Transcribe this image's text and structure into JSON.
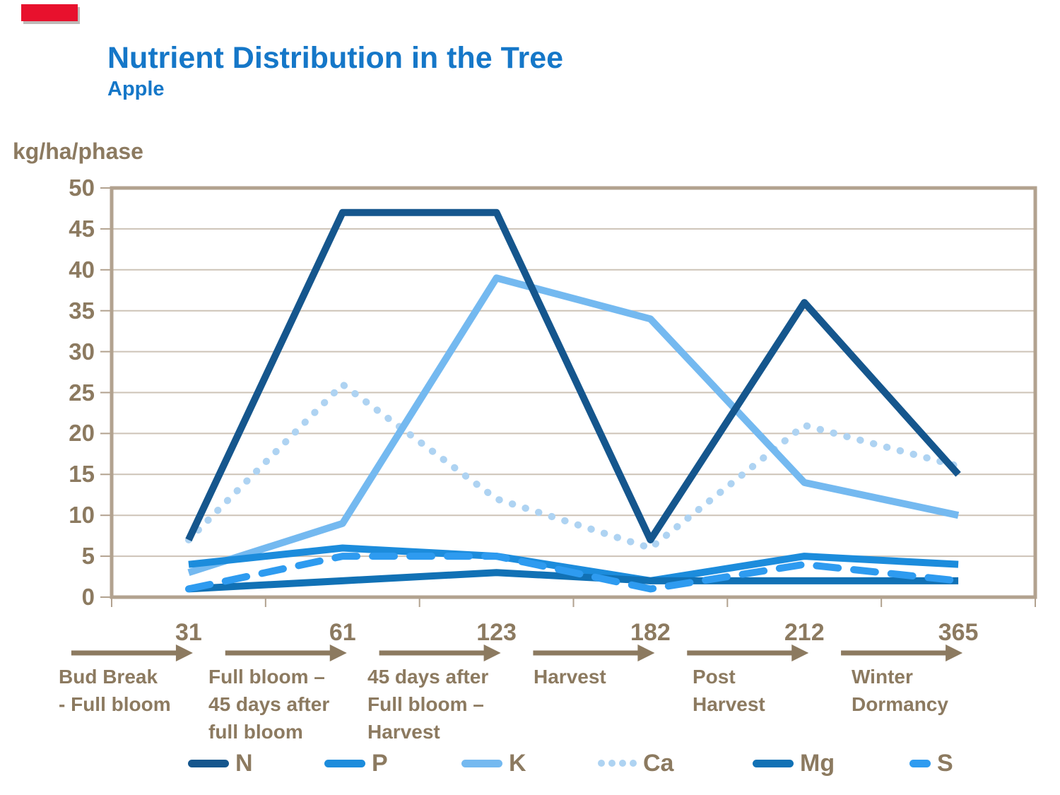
{
  "page": {
    "title": "Nutrient Distribution in the Tree",
    "subtitle": "Apple",
    "unit_label": "kg/ha/phase"
  },
  "colors": {
    "title_blue": "#1577C8",
    "axis_brown": "#8C7A60",
    "gridline": "#CDC3B7",
    "frame": "#B2A28F",
    "red_accent_bar": "#E8112D",
    "background": "#FFFFFF"
  },
  "chart_data": {
    "type": "line",
    "title": "Nutrient Distribution in the Tree",
    "subtitle": "Apple",
    "ylabel": "kg/ha/phase",
    "xlabel": "",
    "ylim": [
      0,
      50
    ],
    "y_ticks": [
      0,
      5,
      10,
      15,
      20,
      25,
      30,
      35,
      40,
      45,
      50
    ],
    "grid": "horizontal",
    "legend_position": "bottom",
    "x": [
      31,
      61,
      123,
      182,
      212,
      365
    ],
    "x_tick_labels": [
      "31",
      "61",
      "123",
      "182",
      "212",
      "365"
    ],
    "series": [
      {
        "name": "N",
        "color": "#15568D",
        "style": "solid",
        "values": [
          7,
          47,
          47,
          7,
          36,
          15
        ]
      },
      {
        "name": "P",
        "color": "#1C8CDC",
        "style": "solid",
        "values": [
          4,
          6,
          5,
          2,
          5,
          4
        ]
      },
      {
        "name": "K",
        "color": "#74B9F0",
        "style": "solid",
        "values": [
          3,
          9,
          39,
          34,
          14,
          10
        ]
      },
      {
        "name": "Ca",
        "color": "#AED3F2",
        "style": "dotted",
        "values": [
          7,
          26,
          12,
          6,
          21,
          16
        ]
      },
      {
        "name": "Mg",
        "color": "#1171B5",
        "style": "solid",
        "values": [
          1,
          2,
          3,
          2,
          2,
          2
        ]
      },
      {
        "name": "S",
        "color": "#2E9BF0",
        "style": "dashed",
        "values": [
          1,
          5,
          5,
          1,
          4,
          2
        ]
      }
    ],
    "phases": [
      {
        "day": "31",
        "label": "Bud Break\n- Full bloom"
      },
      {
        "day": "61",
        "label": "Full bloom –\n45 days after\nfull bloom"
      },
      {
        "day": "123",
        "label": "45 days after\nFull bloom –\nHarvest"
      },
      {
        "day": "182",
        "label": "Harvest"
      },
      {
        "day": "212",
        "label": "Post\nHarvest"
      },
      {
        "day": "365",
        "label": "Winter\nDormancy"
      }
    ]
  }
}
